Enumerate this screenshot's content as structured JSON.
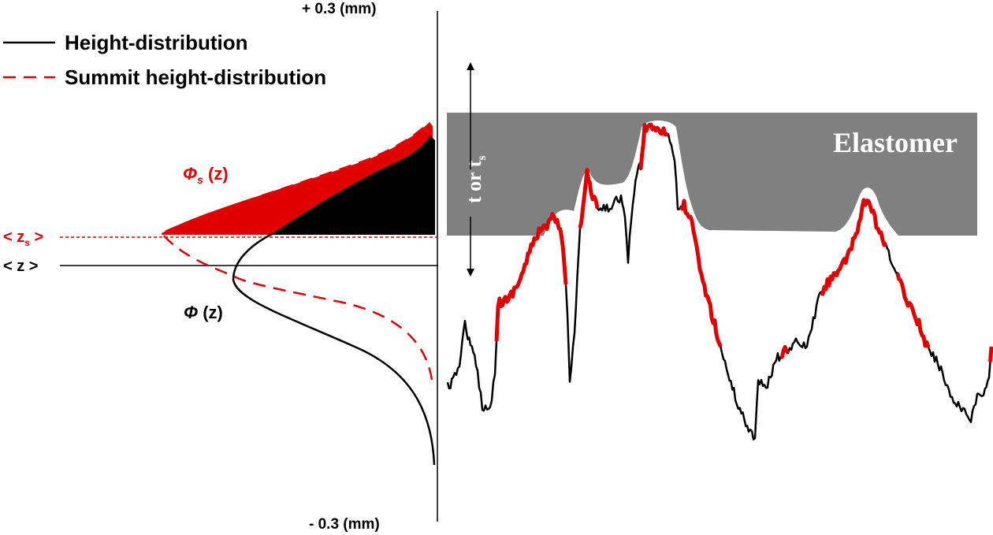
{
  "axis": {
    "top_label": "+ 0.3 (mm)",
    "bottom_label": "- 0.3 (mm)"
  },
  "legend": {
    "items": [
      {
        "label": "Height-distribution",
        "style": "solid",
        "color": "#000000"
      },
      {
        "label": "Summit height-distribution",
        "style": "dashed",
        "color": "#e00000"
      }
    ]
  },
  "labels": {
    "phi_s_symbol": "Φ",
    "phi_s_sub": "s",
    "phi_s_arg": " (z)",
    "phi_symbol": "Φ",
    "phi_arg": " (z)",
    "zs_open": "< z",
    "zs_sub": "s",
    "zs_close": " >",
    "z_mean": "< z >",
    "thickness_main": "t or t",
    "thickness_sub": "s",
    "elastomer": "Elastomer"
  },
  "colors": {
    "red": "#e00000",
    "black": "#000000",
    "elastomer": "#808080",
    "white": "#ffffff"
  }
}
